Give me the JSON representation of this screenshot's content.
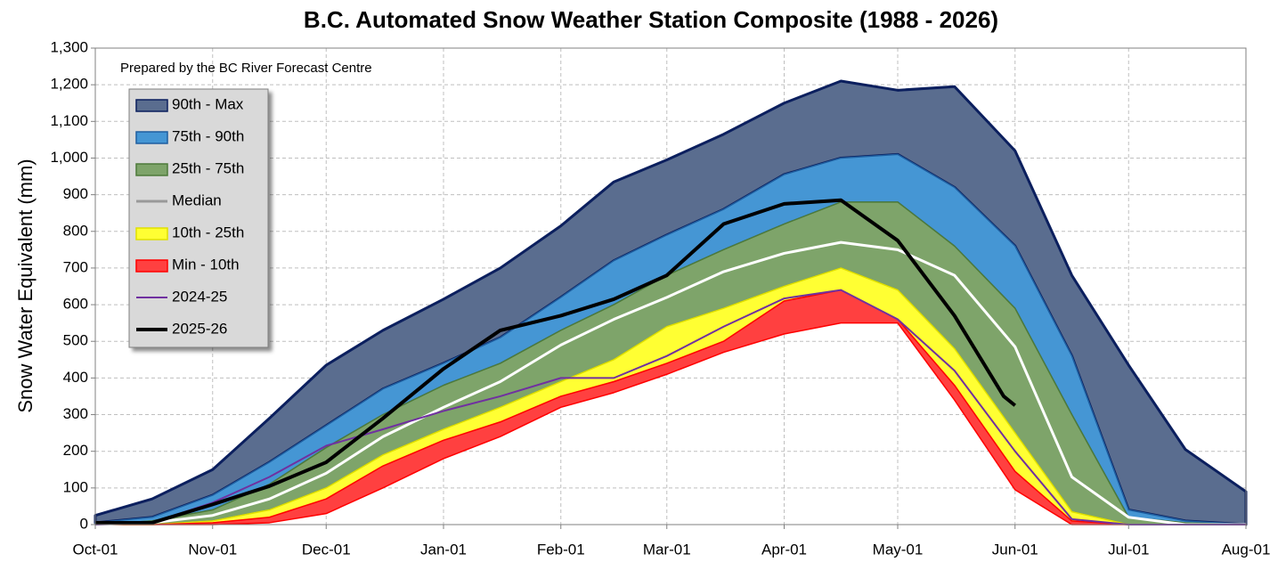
{
  "chart_data": {
    "type": "area-band",
    "title": "B.C. Automated Snow Weather Station Composite (1988 - 2026)",
    "annotation": "Prepared by the BC River Forecast Centre",
    "y_label": "Snow Water Equivalent (mm)",
    "x": [
      0,
      15,
      31,
      46,
      61,
      76,
      92,
      107,
      123,
      137,
      151,
      166,
      182,
      197,
      212,
      227,
      243,
      258,
      273,
      288,
      304
    ],
    "xlim": [
      0,
      304
    ],
    "xticks": [
      {
        "value": 0,
        "label": "Oct-01"
      },
      {
        "value": 31,
        "label": "Nov-01"
      },
      {
        "value": 61,
        "label": "Dec-01"
      },
      {
        "value": 92,
        "label": "Jan-01"
      },
      {
        "value": 123,
        "label": "Feb-01"
      },
      {
        "value": 151,
        "label": "Mar-01"
      },
      {
        "value": 182,
        "label": "Apr-01"
      },
      {
        "value": 212,
        "label": "May-01"
      },
      {
        "value": 243,
        "label": "Jun-01"
      },
      {
        "value": 273,
        "label": "Jul-01"
      },
      {
        "value": 304,
        "label": "Aug-01"
      }
    ],
    "ylim": [
      0,
      1300
    ],
    "yticks": [
      0,
      100,
      200,
      300,
      400,
      500,
      600,
      700,
      800,
      900,
      {
        "value": 1000,
        "label": "1,000"
      },
      {
        "value": 1100,
        "label": "1,100"
      },
      {
        "value": 1200,
        "label": "1,200"
      },
      {
        "value": 1300,
        "label": "1,300"
      }
    ],
    "grid": true,
    "legend": "upper-left",
    "series": [
      {
        "name": "90th - Max",
        "kind": "band",
        "color": "#5a6d8f",
        "edge": "#0b1f5e",
        "high": [
          25,
          70,
          150,
          290,
          435,
          530,
          615,
          700,
          815,
          935,
          995,
          1065,
          1150,
          1210,
          1185,
          1195,
          1020,
          680,
          435,
          205,
          90
        ],
        "low": [
          5,
          20,
          80,
          170,
          270,
          370,
          440,
          510,
          620,
          720,
          790,
          860,
          955,
          1000,
          1010,
          920,
          760,
          460,
          40,
          10,
          0
        ]
      },
      {
        "name": "75th - 90th",
        "kind": "band",
        "color": "#4596d4",
        "edge": "#1f5fa0",
        "high": [
          5,
          20,
          80,
          170,
          270,
          370,
          440,
          510,
          620,
          720,
          790,
          860,
          955,
          1000,
          1010,
          920,
          760,
          460,
          40,
          10,
          0
        ],
        "low": [
          0,
          10,
          40,
          110,
          210,
          300,
          380,
          440,
          530,
          600,
          680,
          750,
          820,
          880,
          880,
          760,
          590,
          300,
          20,
          5,
          0
        ]
      },
      {
        "name": "25th - 75th",
        "kind": "band",
        "color": "#7ea46a",
        "edge": "#4d7a3a",
        "high": [
          0,
          10,
          40,
          110,
          210,
          300,
          380,
          440,
          530,
          600,
          680,
          750,
          820,
          880,
          880,
          760,
          590,
          300,
          20,
          5,
          0
        ],
        "low": [
          0,
          0,
          10,
          40,
          100,
          190,
          260,
          320,
          390,
          450,
          540,
          590,
          650,
          700,
          640,
          480,
          250,
          35,
          0,
          0,
          0
        ]
      },
      {
        "name": "Median",
        "kind": "line",
        "color": "#ffffff",
        "legend_color": "#999999",
        "width": 3,
        "values": [
          0,
          5,
          25,
          70,
          140,
          240,
          320,
          390,
          490,
          560,
          620,
          690,
          740,
          770,
          750,
          680,
          485,
          130,
          20,
          0,
          0
        ]
      },
      {
        "name": "10th - 25th",
        "kind": "band",
        "color": "#ffff33",
        "edge": "#e0e000",
        "high": [
          0,
          0,
          10,
          40,
          100,
          190,
          260,
          320,
          390,
          450,
          540,
          590,
          650,
          700,
          640,
          480,
          250,
          35,
          0,
          0,
          0
        ],
        "low": [
          0,
          0,
          5,
          20,
          70,
          160,
          230,
          280,
          350,
          390,
          440,
          500,
          610,
          640,
          560,
          380,
          145,
          10,
          0,
          0,
          0
        ]
      },
      {
        "name": "Min - 10th",
        "kind": "band",
        "color": "#ff4040",
        "edge": "#ff0000",
        "high": [
          0,
          0,
          5,
          20,
          70,
          160,
          230,
          280,
          350,
          390,
          440,
          500,
          610,
          640,
          560,
          380,
          145,
          10,
          0,
          0,
          0
        ],
        "low": [
          0,
          0,
          0,
          5,
          30,
          100,
          180,
          240,
          320,
          360,
          410,
          470,
          520,
          550,
          550,
          340,
          95,
          0,
          0,
          0,
          0
        ]
      },
      {
        "name": "2024-25",
        "kind": "line",
        "color": "#7030a0",
        "width": 2,
        "values": [
          0,
          5,
          60,
          130,
          215,
          260,
          310,
          350,
          400,
          400,
          460,
          540,
          617,
          640,
          560,
          420,
          200,
          15,
          0,
          0,
          0
        ]
      },
      {
        "name": "2025-26",
        "kind": "line",
        "color": "#000000",
        "width": 4,
        "x": [
          0,
          15,
          31,
          46,
          61,
          76,
          92,
          107,
          123,
          137,
          151,
          166,
          182,
          197,
          212,
          227,
          240,
          243
        ],
        "values": [
          5,
          5,
          55,
          105,
          170,
          290,
          425,
          530,
          570,
          615,
          680,
          820,
          875,
          885,
          775,
          570,
          350,
          325
        ]
      }
    ]
  }
}
